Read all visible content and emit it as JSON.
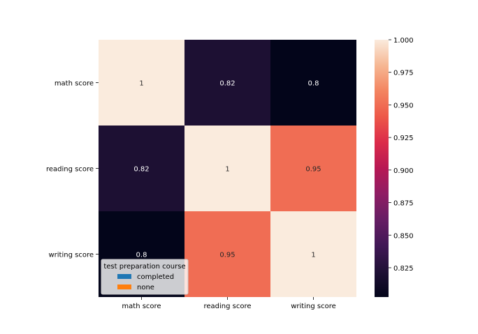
{
  "chart_data": {
    "type": "heatmap",
    "title": "",
    "xlabel": "",
    "ylabel": "",
    "x_labels": [
      "math score",
      "reading score",
      "writing score"
    ],
    "y_labels": [
      "math score",
      "reading score",
      "writing score"
    ],
    "values": [
      [
        1.0,
        0.82,
        0.8
      ],
      [
        0.82,
        1.0,
        0.95
      ],
      [
        0.8,
        0.95,
        1.0
      ]
    ],
    "annotations": [
      [
        "1",
        "0.82",
        "0.8"
      ],
      [
        "0.82",
        "1",
        "0.95"
      ],
      [
        "0.8",
        "0.95",
        "1"
      ]
    ],
    "colorbar": {
      "min": 0.8025,
      "max": 1.0,
      "ticks": [
        0.825,
        0.85,
        0.875,
        0.9,
        0.925,
        0.95,
        0.975,
        1.0
      ],
      "tick_labels": [
        "0.825",
        "0.850",
        "0.875",
        "0.900",
        "0.925",
        "0.950",
        "0.975",
        "1.000"
      ],
      "colormap": "rocket"
    },
    "legend": {
      "title": "test preparation course",
      "placement": "lower-left",
      "items": [
        {
          "label": "completed",
          "color": "#1f77b4"
        },
        {
          "label": "none",
          "color": "#ff7f0e"
        }
      ]
    },
    "grid": false
  }
}
